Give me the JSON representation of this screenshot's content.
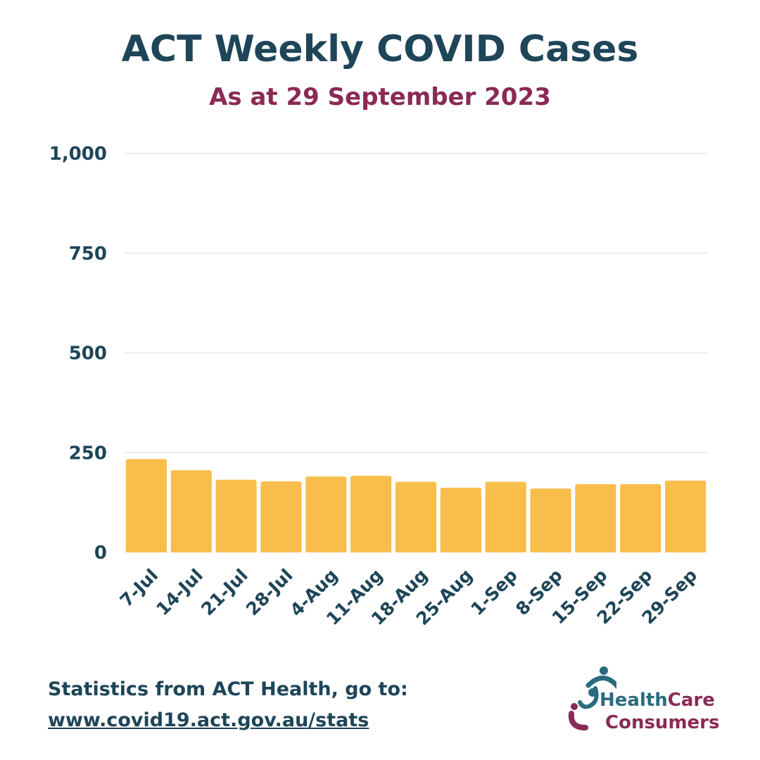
{
  "header": {
    "title": "ACT Weekly COVID Cases",
    "subtitle": "As at 29 September 2023"
  },
  "colors": {
    "title": "#1e4558",
    "subtitle": "#8a2a55",
    "bar": "#f9bd4c",
    "grid": "#dddddd"
  },
  "chart_data": {
    "type": "bar",
    "title": "ACT Weekly COVID Cases",
    "subtitle": "As at 29 September 2023",
    "categories": [
      "7-Jul",
      "14-Jul",
      "21-Jul",
      "28-Jul",
      "4-Aug",
      "11-Aug",
      "18-Aug",
      "25-Aug",
      "1-Sep",
      "8-Sep",
      "15-Sep",
      "22-Sep",
      "29-Sep"
    ],
    "values": [
      234,
      206,
      182,
      178,
      190,
      192,
      177,
      162,
      177,
      160,
      171,
      171,
      180
    ],
    "ylim": [
      0,
      1000
    ],
    "yticks": [
      0,
      250,
      500,
      750,
      1000
    ],
    "ytick_labels": [
      "0",
      "250",
      "500",
      "750",
      "1,000"
    ],
    "xlabel": "",
    "ylabel": "",
    "grid": true,
    "legend": "none"
  },
  "footer": {
    "source_text": "Statistics from ACT Health, go to:",
    "url_text": "www.covid19.act.gov.au/stats"
  },
  "logo": {
    "word_health": "Health",
    "word_care": "Care",
    "word_consumers": "Consumers",
    "icon": "people-embrace-icon"
  }
}
